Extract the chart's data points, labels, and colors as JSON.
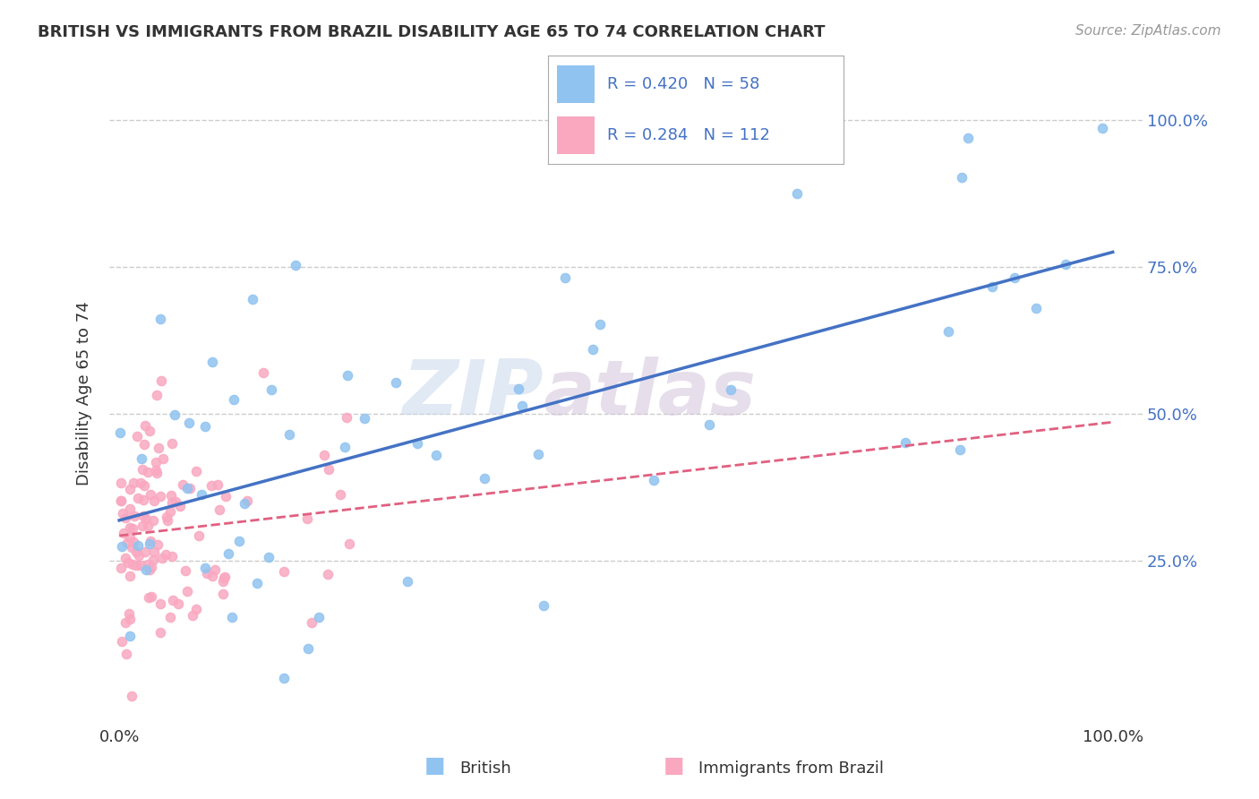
{
  "title": "BRITISH VS IMMIGRANTS FROM BRAZIL DISABILITY AGE 65 TO 74 CORRELATION CHART",
  "source": "Source: ZipAtlas.com",
  "ylabel": "Disability Age 65 to 74",
  "british_color": "#91C3F0",
  "brazil_color": "#F9A8C0",
  "british_line_color": "#4472C4",
  "brazil_line_color": "#E06080",
  "R_british": 0.42,
  "N_british": 58,
  "R_brazil": 0.284,
  "N_brazil": 112,
  "watermark_zip": "ZIP",
  "watermark_atlas": "atlas",
  "background_color": "#FFFFFF",
  "grid_color": "#CCCCCC",
  "legend_label_british": "British",
  "legend_label_brazil": "Immigrants from Brazil",
  "title_fontsize": 13,
  "axis_label_fontsize": 13,
  "tick_fontsize": 13
}
